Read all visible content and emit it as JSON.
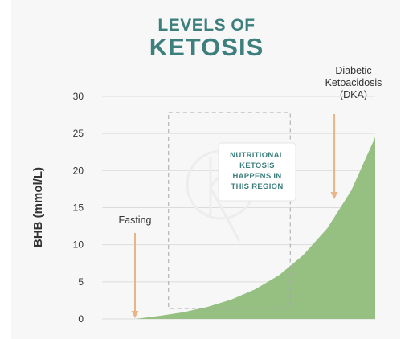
{
  "chart_data": {
    "type": "area",
    "title": [
      "LEVELS OF",
      "KETOSIS"
    ],
    "ylabel": "BHB (mmol/L)",
    "xlabel": "",
    "ylim": [
      0,
      30
    ],
    "y_ticks": [
      0,
      5,
      10,
      15,
      20,
      25,
      30
    ],
    "grid": true,
    "x_axis_shown": false,
    "curve": "exponential",
    "fill_color": "#95c082",
    "points": [
      {
        "x": 0.0,
        "y": 0.0
      },
      {
        "x": 0.1,
        "y": 0.4
      },
      {
        "x": 0.2,
        "y": 0.9
      },
      {
        "x": 0.3,
        "y": 1.6
      },
      {
        "x": 0.4,
        "y": 2.6
      },
      {
        "x": 0.5,
        "y": 4.0
      },
      {
        "x": 0.6,
        "y": 5.9
      },
      {
        "x": 0.7,
        "y": 8.6
      },
      {
        "x": 0.8,
        "y": 12.2
      },
      {
        "x": 0.9,
        "y": 17.3
      },
      {
        "x": 1.0,
        "y": 24.5
      }
    ],
    "annotations": [
      {
        "text": [
          "Fasting"
        ],
        "arrow_x": 0.0,
        "arrow_to_y": 0.0
      },
      {
        "text": [
          "Diabetic",
          "Ketoacidosis",
          "(DKA)"
        ],
        "arrow_x": 0.93,
        "arrow_to_y": 16.0
      }
    ],
    "region": {
      "x_start": 0.24,
      "x_end": 0.76,
      "label": [
        "NUTRITIONAL",
        "KETOSIS",
        "HAPPENS IN",
        "THIS REGION"
      ]
    },
    "colors": {
      "title": "#3c7f7d",
      "area": "#95c082",
      "arrow": "#e8b587",
      "grid": "#dcdcdc",
      "region_border": "#a8a8a8",
      "region_text": "#3c7f7d"
    }
  }
}
